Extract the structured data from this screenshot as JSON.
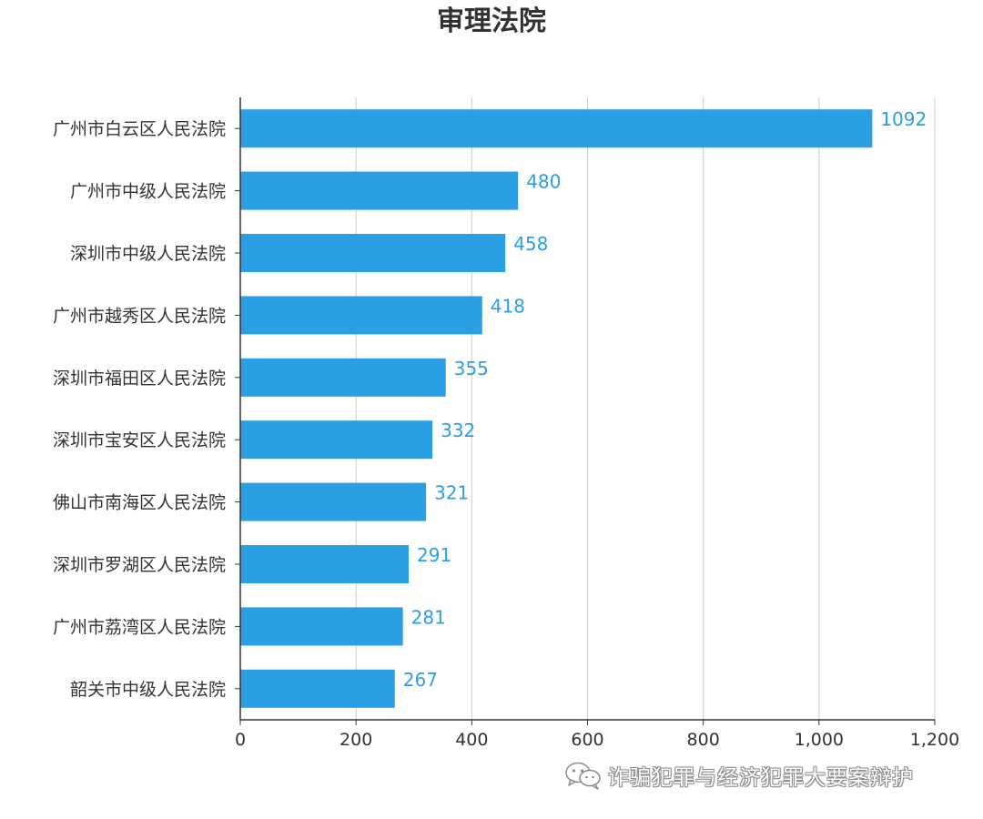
{
  "chart_data": {
    "type": "bar",
    "orientation": "horizontal",
    "title": "审理法院",
    "categories": [
      "广州市白云区人民法院",
      "广州市中级人民法院",
      "深圳市中级人民法院",
      "广州市越秀区人民法院",
      "深圳市福田区人民法院",
      "深圳市宝安区人民法院",
      "佛山市南海区人民法院",
      "深圳市罗湖区人民法院",
      "广州市荔湾区人民法院",
      "韶关市中级人民法院"
    ],
    "values": [
      1092,
      480,
      458,
      418,
      355,
      332,
      321,
      291,
      281,
      267
    ],
    "data_labels": [
      "1092",
      "480",
      "458",
      "418",
      "355",
      "332",
      "321",
      "291",
      "281",
      "267"
    ],
    "xlim": [
      0,
      1200
    ],
    "x_ticks": [
      0,
      200,
      400,
      600,
      800,
      1000,
      1200
    ],
    "x_tick_labels": [
      "0",
      "200",
      "400",
      "600",
      "800",
      "1,000",
      "1,200"
    ],
    "grid": "vertical",
    "legend": "none",
    "colors": {
      "bar": "#2b9fe4",
      "data_label": "#2b9fe4",
      "grid": "#cccccc",
      "axis": "#333333",
      "text": "#333333"
    }
  },
  "watermark": {
    "icon": "wechat-icon",
    "text": "诈骗犯罪与经济犯罪大要案辩护"
  }
}
